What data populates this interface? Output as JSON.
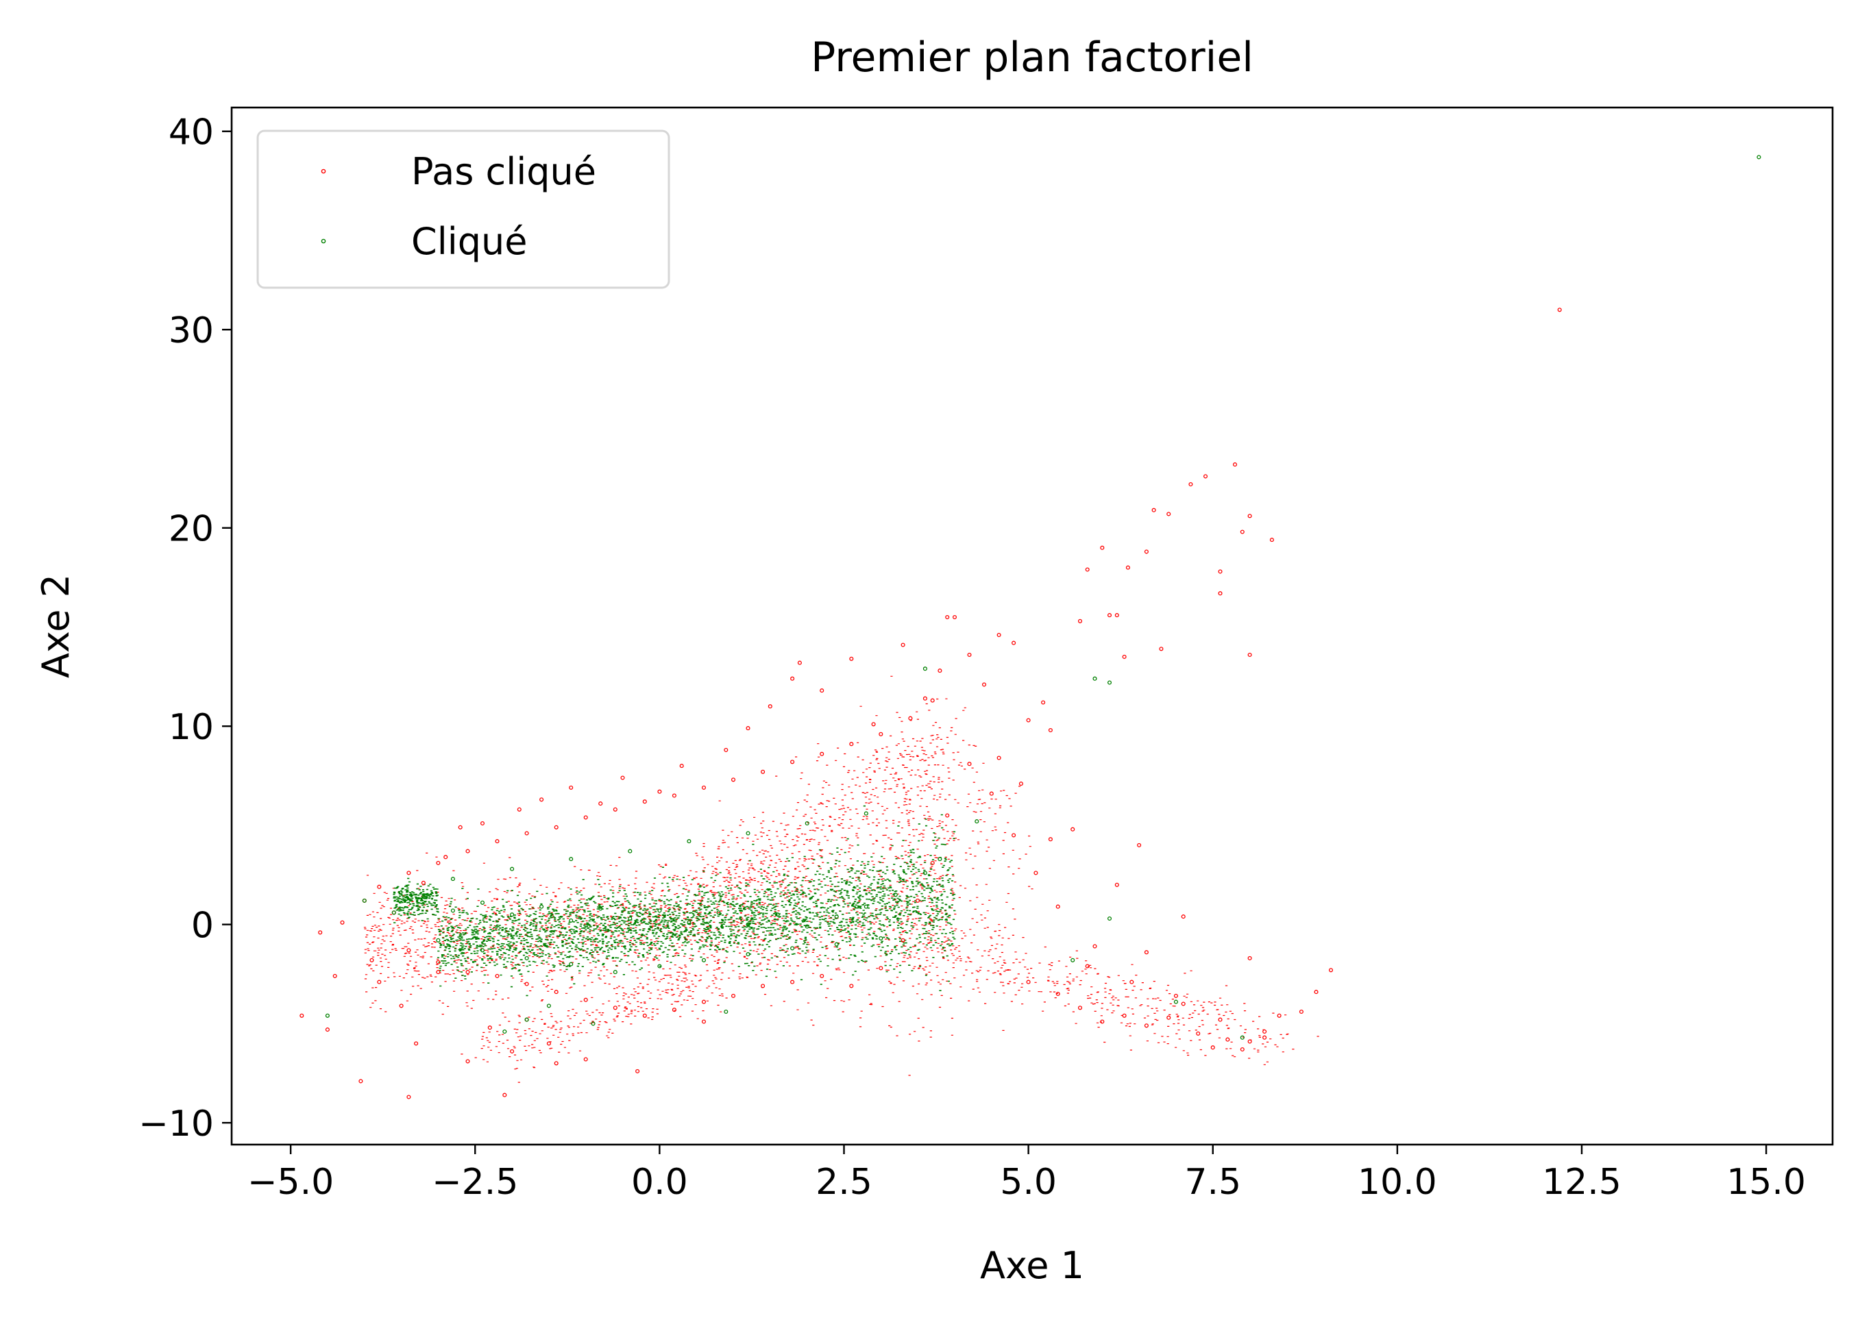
{
  "chart_data": {
    "type": "scatter",
    "title": "Premier plan factoriel",
    "xlabel": "Axe 1",
    "ylabel": "Axe 2",
    "xlim": [
      -5.8,
      15.9
    ],
    "ylim": [
      -11.1,
      41.2
    ],
    "xticks": [
      -5.0,
      -2.5,
      0.0,
      2.5,
      5.0,
      7.5,
      10.0,
      12.5,
      15.0
    ],
    "xtick_labels": [
      "−5.0",
      "−2.5",
      "0.0",
      "2.5",
      "5.0",
      "7.5",
      "10.0",
      "12.5",
      "15.0"
    ],
    "yticks": [
      -10,
      0,
      10,
      20,
      30,
      40
    ],
    "ytick_labels": [
      "−10",
      "0",
      "10",
      "20",
      "30",
      "40"
    ],
    "grid": false,
    "legend_position": "top-left",
    "series": [
      {
        "name": "Pas cliqué",
        "color": "#ff0000",
        "points": [
          [
            -4.85,
            -4.6
          ],
          [
            -4.6,
            -0.4
          ],
          [
            -4.5,
            -5.3
          ],
          [
            -4.4,
            -2.6
          ],
          [
            -4.3,
            0.1
          ],
          [
            -4.05,
            -7.9
          ],
          [
            -4.0,
            1.2
          ],
          [
            -3.9,
            -1.8
          ],
          [
            -3.8,
            -2.9
          ],
          [
            -3.6,
            0.6
          ],
          [
            -3.5,
            -4.1
          ],
          [
            -3.4,
            -8.7
          ],
          [
            -3.3,
            -6.0
          ],
          [
            -3.2,
            2.1
          ],
          [
            -3.0,
            -2.4
          ],
          [
            -2.9,
            3.4
          ],
          [
            -2.7,
            4.9
          ],
          [
            -2.6,
            -6.9
          ],
          [
            -2.4,
            5.1
          ],
          [
            -2.3,
            -5.2
          ],
          [
            -2.1,
            -8.6
          ],
          [
            -2.0,
            -6.4
          ],
          [
            -1.9,
            5.8
          ],
          [
            -1.8,
            -4.8
          ],
          [
            -1.6,
            6.3
          ],
          [
            -1.5,
            -6.0
          ],
          [
            -1.4,
            -7.0
          ],
          [
            -1.2,
            6.9
          ],
          [
            -1.0,
            -6.8
          ],
          [
            -0.8,
            6.1
          ],
          [
            -0.5,
            7.4
          ],
          [
            -0.3,
            -7.4
          ],
          [
            0.0,
            6.7
          ],
          [
            0.3,
            8.0
          ],
          [
            0.6,
            -4.9
          ],
          [
            0.9,
            8.8
          ],
          [
            1.2,
            9.9
          ],
          [
            1.5,
            11.0
          ],
          [
            1.8,
            12.4
          ],
          [
            1.9,
            13.2
          ],
          [
            2.2,
            11.8
          ],
          [
            2.6,
            13.4
          ],
          [
            2.9,
            10.1
          ],
          [
            3.3,
            14.1
          ],
          [
            3.6,
            11.4
          ],
          [
            3.8,
            12.8
          ],
          [
            3.9,
            15.5
          ],
          [
            4.0,
            15.5
          ],
          [
            4.2,
            13.6
          ],
          [
            4.4,
            12.1
          ],
          [
            4.6,
            14.6
          ],
          [
            4.8,
            14.2
          ],
          [
            5.0,
            10.3
          ],
          [
            5.2,
            11.2
          ],
          [
            5.3,
            9.8
          ],
          [
            5.6,
            4.8
          ],
          [
            5.7,
            15.3
          ],
          [
            5.8,
            17.9
          ],
          [
            6.0,
            19.0
          ],
          [
            6.1,
            15.6
          ],
          [
            6.2,
            15.6
          ],
          [
            6.3,
            13.5
          ],
          [
            6.35,
            18.0
          ],
          [
            6.5,
            4.0
          ],
          [
            6.6,
            18.8
          ],
          [
            6.7,
            20.9
          ],
          [
            6.8,
            13.9
          ],
          [
            6.9,
            20.7
          ],
          [
            7.2,
            22.2
          ],
          [
            7.4,
            22.6
          ],
          [
            7.6,
            17.8
          ],
          [
            7.6,
            16.7
          ],
          [
            7.8,
            23.2
          ],
          [
            7.9,
            19.8
          ],
          [
            8.0,
            20.6
          ],
          [
            8.0,
            13.6
          ],
          [
            8.3,
            19.4
          ],
          [
            12.2,
            31.0
          ],
          [
            5.0,
            -2.9
          ],
          [
            5.4,
            -3.5
          ],
          [
            5.7,
            -4.2
          ],
          [
            6.0,
            -4.9
          ],
          [
            6.3,
            -4.6
          ],
          [
            6.6,
            -5.1
          ],
          [
            6.9,
            -4.7
          ],
          [
            7.1,
            -4.0
          ],
          [
            7.3,
            -5.5
          ],
          [
            7.5,
            -6.2
          ],
          [
            7.7,
            -5.8
          ],
          [
            7.9,
            -6.3
          ],
          [
            8.0,
            -5.9
          ],
          [
            8.2,
            -5.4
          ],
          [
            8.4,
            -4.6
          ],
          [
            8.7,
            -4.4
          ],
          [
            9.1,
            -2.3
          ],
          [
            8.9,
            -3.4
          ],
          [
            8.0,
            -1.7
          ],
          [
            7.1,
            0.4
          ],
          [
            6.6,
            -1.4
          ],
          [
            6.2,
            2.0
          ],
          [
            5.9,
            -1.1
          ],
          [
            5.4,
            0.9
          ],
          [
            5.1,
            2.6
          ],
          [
            4.8,
            4.5
          ],
          [
            4.5,
            6.6
          ],
          [
            4.2,
            8.1
          ],
          [
            3.9,
            5.5
          ],
          [
            3.7,
            3.1
          ],
          [
            3.5,
            1.2
          ],
          [
            3.3,
            -0.8
          ],
          [
            3.0,
            -2.2
          ],
          [
            2.6,
            -3.1
          ],
          [
            2.2,
            -2.6
          ],
          [
            1.8,
            -2.9
          ],
          [
            1.4,
            -3.1
          ],
          [
            1.0,
            -3.6
          ],
          [
            0.6,
            -3.9
          ],
          [
            0.2,
            -4.3
          ],
          [
            -0.2,
            -4.6
          ],
          [
            -0.6,
            -4.2
          ],
          [
            -1.0,
            -3.8
          ],
          [
            -1.4,
            -3.4
          ],
          [
            -1.8,
            -3.0
          ],
          [
            -2.2,
            -2.6
          ],
          [
            -2.6,
            -2.4
          ],
          [
            -3.0,
            -1.9
          ],
          [
            -3.4,
            -1.3
          ],
          [
            -3.8,
            1.9
          ],
          [
            -3.4,
            2.6
          ],
          [
            -3.0,
            3.1
          ],
          [
            -2.6,
            3.7
          ],
          [
            -2.2,
            4.2
          ],
          [
            -1.8,
            4.6
          ],
          [
            -1.4,
            4.9
          ],
          [
            -1.0,
            5.4
          ],
          [
            -0.6,
            5.8
          ],
          [
            -0.2,
            6.2
          ],
          [
            0.2,
            6.5
          ],
          [
            0.6,
            6.9
          ],
          [
            1.0,
            7.3
          ],
          [
            1.4,
            7.7
          ],
          [
            1.8,
            8.2
          ],
          [
            2.2,
            8.6
          ],
          [
            2.6,
            9.1
          ],
          [
            3.0,
            9.6
          ],
          [
            3.4,
            10.4
          ],
          [
            3.7,
            11.3
          ],
          [
            4.6,
            8.4
          ],
          [
            4.9,
            7.1
          ],
          [
            5.3,
            4.3
          ],
          [
            5.8,
            -2.1
          ],
          [
            6.4,
            -2.9
          ],
          [
            7.0,
            -3.6
          ],
          [
            7.6,
            -4.8
          ],
          [
            8.2,
            -5.7
          ]
        ]
      },
      {
        "name": "Cliqué",
        "color": "#008000",
        "points": [
          [
            14.9,
            38.7
          ],
          [
            -4.5,
            -4.6
          ],
          [
            -4.0,
            1.2
          ],
          [
            -3.6,
            0.6
          ],
          [
            -3.2,
            1.4
          ],
          [
            -2.8,
            0.7
          ],
          [
            -2.4,
            1.1
          ],
          [
            -2.0,
            0.5
          ],
          [
            -1.6,
            0.9
          ],
          [
            -1.2,
            0.2
          ],
          [
            -0.8,
            0.8
          ],
          [
            -0.4,
            0.3
          ],
          [
            0.0,
            0.7
          ],
          [
            0.4,
            0.1
          ],
          [
            0.8,
            0.6
          ],
          [
            1.2,
            0.0
          ],
          [
            1.6,
            0.5
          ],
          [
            2.0,
            -0.1
          ],
          [
            2.4,
            0.4
          ],
          [
            2.8,
            0.9
          ],
          [
            3.2,
            1.5
          ],
          [
            3.6,
            2.6
          ],
          [
            3.8,
            3.3
          ],
          [
            -3.0,
            -0.8
          ],
          [
            -2.4,
            -1.3
          ],
          [
            -1.8,
            -1.7
          ],
          [
            -1.2,
            -2.0
          ],
          [
            -0.6,
            -2.4
          ],
          [
            0.0,
            -2.1
          ],
          [
            0.6,
            -1.8
          ],
          [
            1.2,
            -1.5
          ],
          [
            1.8,
            -1.2
          ],
          [
            2.4,
            -1.0
          ],
          [
            3.0,
            -0.7
          ],
          [
            -2.8,
            2.3
          ],
          [
            -2.0,
            2.8
          ],
          [
            -1.2,
            3.3
          ],
          [
            -0.4,
            3.7
          ],
          [
            0.4,
            4.2
          ],
          [
            1.2,
            4.6
          ],
          [
            2.0,
            5.1
          ],
          [
            2.8,
            5.6
          ],
          [
            -1.8,
            -4.8
          ],
          [
            -1.5,
            -4.1
          ],
          [
            -2.1,
            -5.4
          ],
          [
            5.9,
            12.4
          ],
          [
            6.1,
            12.2
          ],
          [
            3.6,
            12.9
          ],
          [
            4.3,
            5.2
          ],
          [
            6.1,
            0.3
          ],
          [
            5.6,
            -1.8
          ],
          [
            7.0,
            -3.9
          ],
          [
            7.9,
            -5.7
          ],
          [
            -0.9,
            -5.0
          ],
          [
            0.9,
            -4.4
          ]
        ]
      }
    ]
  }
}
